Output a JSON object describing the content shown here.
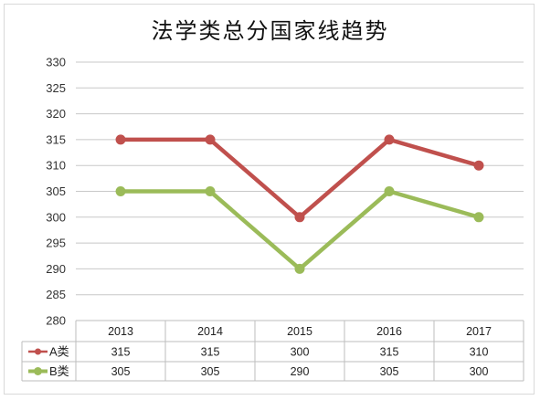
{
  "chart_data": {
    "type": "line",
    "title": "法学类总分国家线趋势",
    "categories": [
      "2013",
      "2014",
      "2015",
      "2016",
      "2017"
    ],
    "series": [
      {
        "name": "A类",
        "values": [
          315,
          315,
          300,
          315,
          310
        ],
        "color": "#c0504d"
      },
      {
        "name": "B类",
        "values": [
          305,
          305,
          290,
          305,
          300
        ],
        "color": "#9bbb59"
      }
    ],
    "ylim": [
      280,
      330
    ],
    "yticks": [
      "330",
      "325",
      "320",
      "315",
      "310",
      "305",
      "300",
      "295",
      "290",
      "285",
      "280"
    ],
    "grid": true,
    "legend": "data-table"
  }
}
